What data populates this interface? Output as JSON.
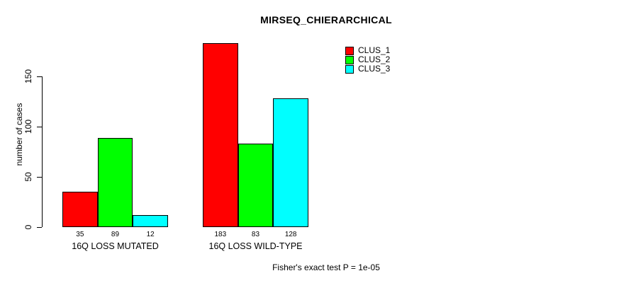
{
  "chart_data": {
    "type": "bar",
    "title": "MIRSEQ_CHIERARCHICAL",
    "ylabel": "number of cases",
    "xlabel": "",
    "categories": [
      "16Q LOSS MUTATED",
      "16Q LOSS WILD-TYPE"
    ],
    "series": [
      {
        "name": "CLUS_1",
        "color": "#ff0000",
        "values": [
          35,
          183
        ]
      },
      {
        "name": "CLUS_2",
        "color": "#00ff00",
        "values": [
          89,
          83
        ]
      },
      {
        "name": "CLUS_3",
        "color": "#00ffff",
        "values": [
          12,
          128
        ]
      }
    ],
    "bar_labels": [
      [
        "35",
        "89",
        "12"
      ],
      [
        "183",
        "83",
        "128"
      ]
    ],
    "yticks": [
      0,
      50,
      100,
      150
    ],
    "ylim": [
      0,
      183
    ],
    "grid": false,
    "legend_position": "top-right",
    "legend_entries": [
      "CLUS_1",
      "CLUS_2",
      "CLUS_3"
    ],
    "annotation": "Fisher's exact test P = 1e-05"
  }
}
